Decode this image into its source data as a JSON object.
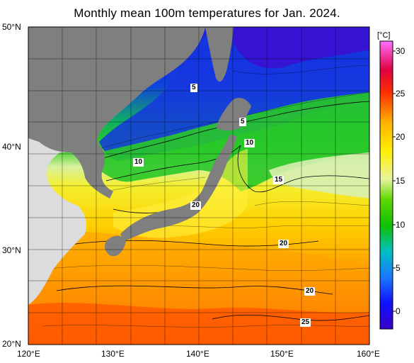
{
  "title": "Monthly mean 100m temperatures for Jan. 2024.",
  "axes": {
    "lat_labels": [
      "50°N",
      "40°N",
      "30°N",
      "20°N"
    ],
    "lon_labels": [
      "120°E",
      "130°E",
      "140°E",
      "150°E",
      "160°E"
    ]
  },
  "colorbar": {
    "unit": "[°C]",
    "ticks": [
      "30",
      "25",
      "20",
      "15",
      "10",
      "5",
      "0"
    ],
    "range": [
      -3,
      31
    ]
  },
  "contour_labels": [
    {
      "text": "5"
    },
    {
      "text": "5"
    },
    {
      "text": "10"
    },
    {
      "text": "10"
    },
    {
      "text": "15"
    },
    {
      "text": "20"
    },
    {
      "text": "20"
    },
    {
      "text": "20"
    },
    {
      "text": "25"
    }
  ],
  "colors": {
    "land": "#7f7f7f",
    "land_light": "#dcdcdc",
    "coldest": "#3a00c8",
    "warmest": "#ff5fff"
  }
}
